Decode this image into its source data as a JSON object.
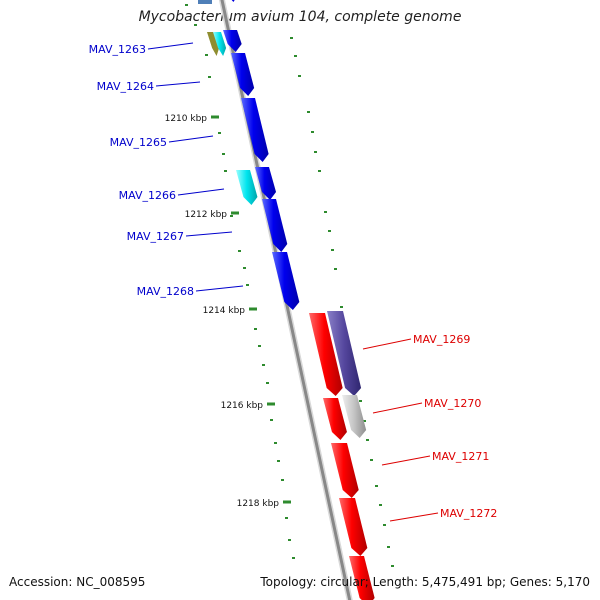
{
  "title": "Mycobacterium avium 104, complete genome",
  "footer": {
    "accession": "Accession: NC_008595",
    "summary": "Topology: circular; Length: 5,475,491 bp; Genes: 5,170"
  },
  "colors": {
    "forward_gene": "#0000ee",
    "reverse_gene": "#ff0000",
    "backbone": "#888888",
    "tick": "#2e8b2e",
    "forward_label": "#0000cc",
    "reverse_label": "#dd0000"
  },
  "kbp_ticks": [
    "1210 kbp",
    "1212 kbp",
    "1214 kbp",
    "1216 kbp",
    "1218 kbp"
  ],
  "forward_genes": [
    "MAV_1263",
    "MAV_1264",
    "MAV_1265",
    "MAV_1266",
    "MAV_1267",
    "MAV_1268"
  ],
  "reverse_genes": [
    "MAV_1269",
    "MAV_1270",
    "MAV_1271",
    "MAV_1272"
  ]
}
